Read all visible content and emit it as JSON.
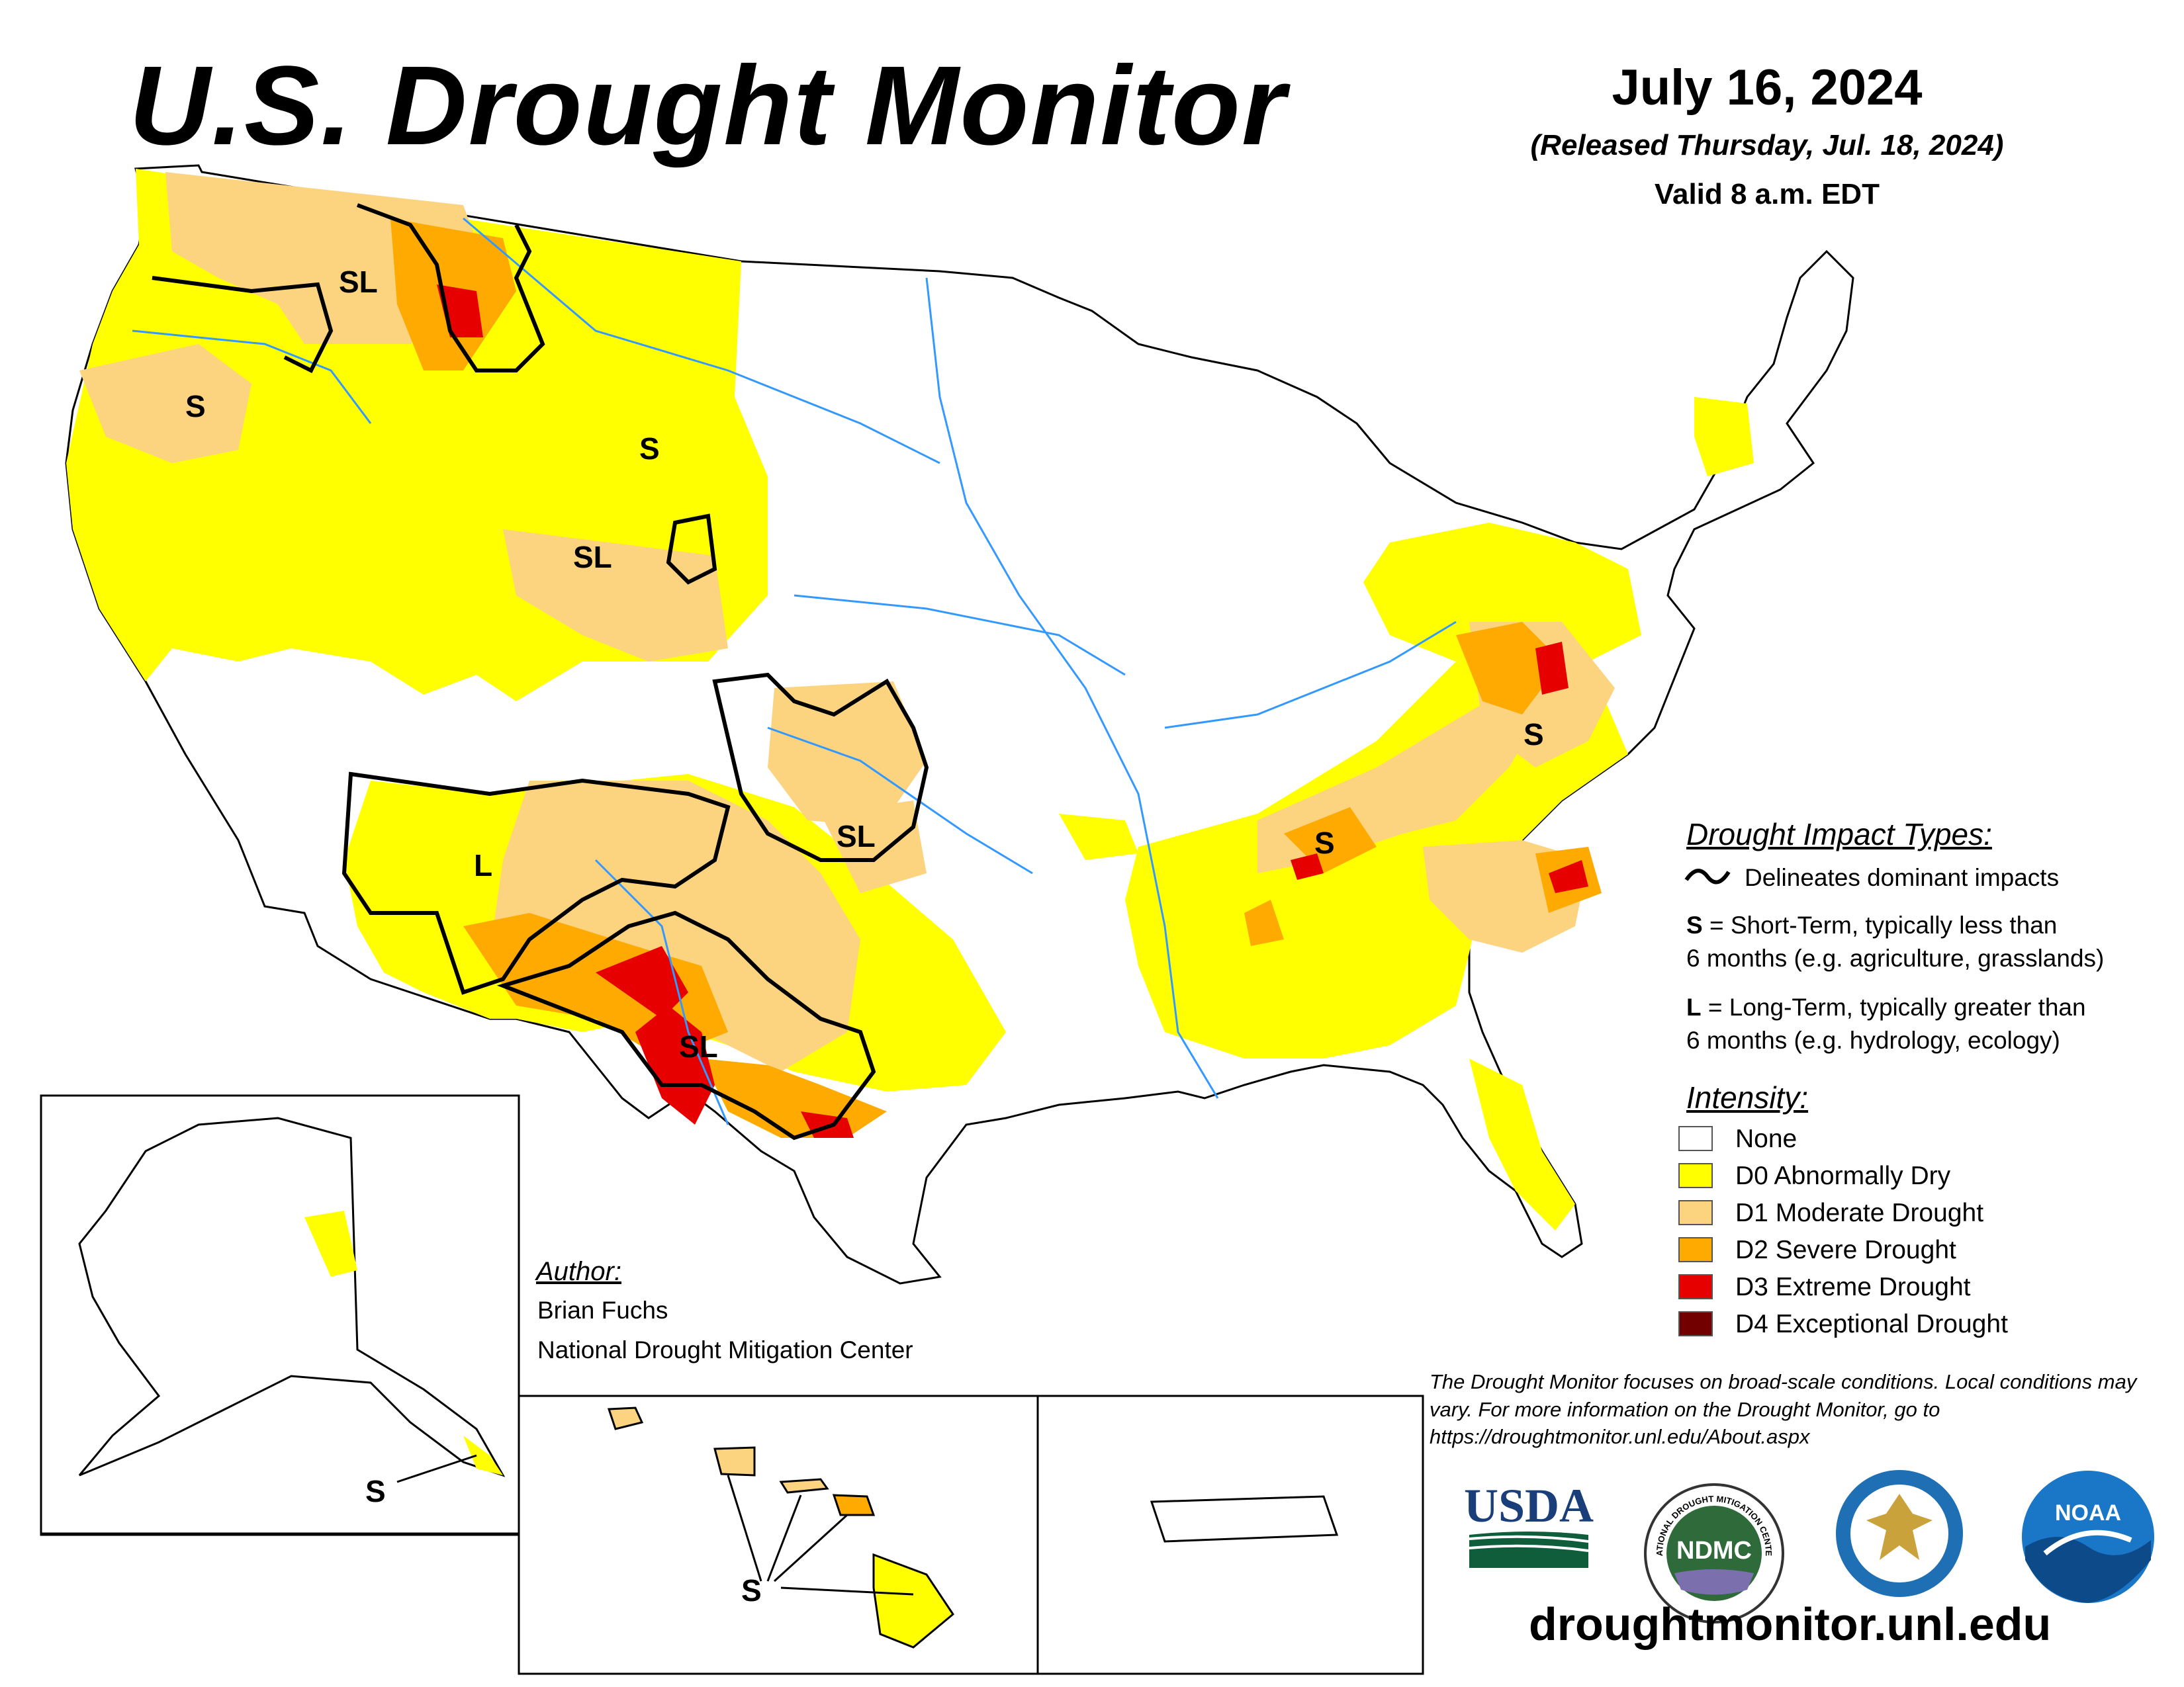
{
  "title": "U.S. Drought Monitor",
  "date": "July 16, 2024",
  "released": "(Released Thursday, Jul. 18, 2024)",
  "valid": "Valid 8 a.m. EDT",
  "impact_types": {
    "heading": "Drought Impact Types:",
    "delineates": "Delineates dominant impacts",
    "s_key": "S",
    "s_desc_1": " = Short-Term, typically less than",
    "s_desc_2": "6 months (e.g. agriculture, grasslands)",
    "l_key": "L",
    "l_desc_1": " = Long-Term, typically greater than",
    "l_desc_2": "6 months (e.g. hydrology, ecology)"
  },
  "intensity": {
    "heading": "Intensity:",
    "categories": [
      {
        "label": "None",
        "color": "#ffffff"
      },
      {
        "label": "D0 Abnormally Dry",
        "color": "#ffff00"
      },
      {
        "label": "D1 Moderate Drought",
        "color": "#fcd37f"
      },
      {
        "label": "D2 Severe Drought",
        "color": "#ffaa00"
      },
      {
        "label": "D3 Extreme Drought",
        "color": "#e60000"
      },
      {
        "label": "D4 Exceptional Drought",
        "color": "#730000"
      }
    ]
  },
  "map_labels": {
    "sl_montana": "SL",
    "s_oregon": "S",
    "s_wyoming": "S",
    "sl_wyoming": "SL",
    "l_arizona": "L",
    "sl_oklahoma": "SL",
    "sl_texas": "SL",
    "s_tennessee": "S",
    "s_virginia": "S",
    "s_alaska": "S",
    "s_hawaii": "S"
  },
  "author": {
    "heading": "Author:",
    "name": "Brian Fuchs",
    "organization": "National Drought Mitigation Center"
  },
  "disclaimer": "The Drought Monitor focuses on broad-scale conditions. Local conditions may vary. For more information on the Drought Monitor, go to https://droughtmonitor.unl.edu/About.aspx",
  "logos": {
    "usda": "USDA",
    "ndmc": "NDMC",
    "ndmc_ring": "NATIONAL DROUGHT MITIGATION CENTER",
    "noaa": "NOAA"
  },
  "website": "droughtmonitor.unl.edu",
  "colors": {
    "none": "#ffffff",
    "d0": "#ffff00",
    "d1": "#fcd37f",
    "d2": "#ffaa00",
    "d3": "#e60000",
    "d4": "#730000",
    "water": "#3399ff"
  }
}
